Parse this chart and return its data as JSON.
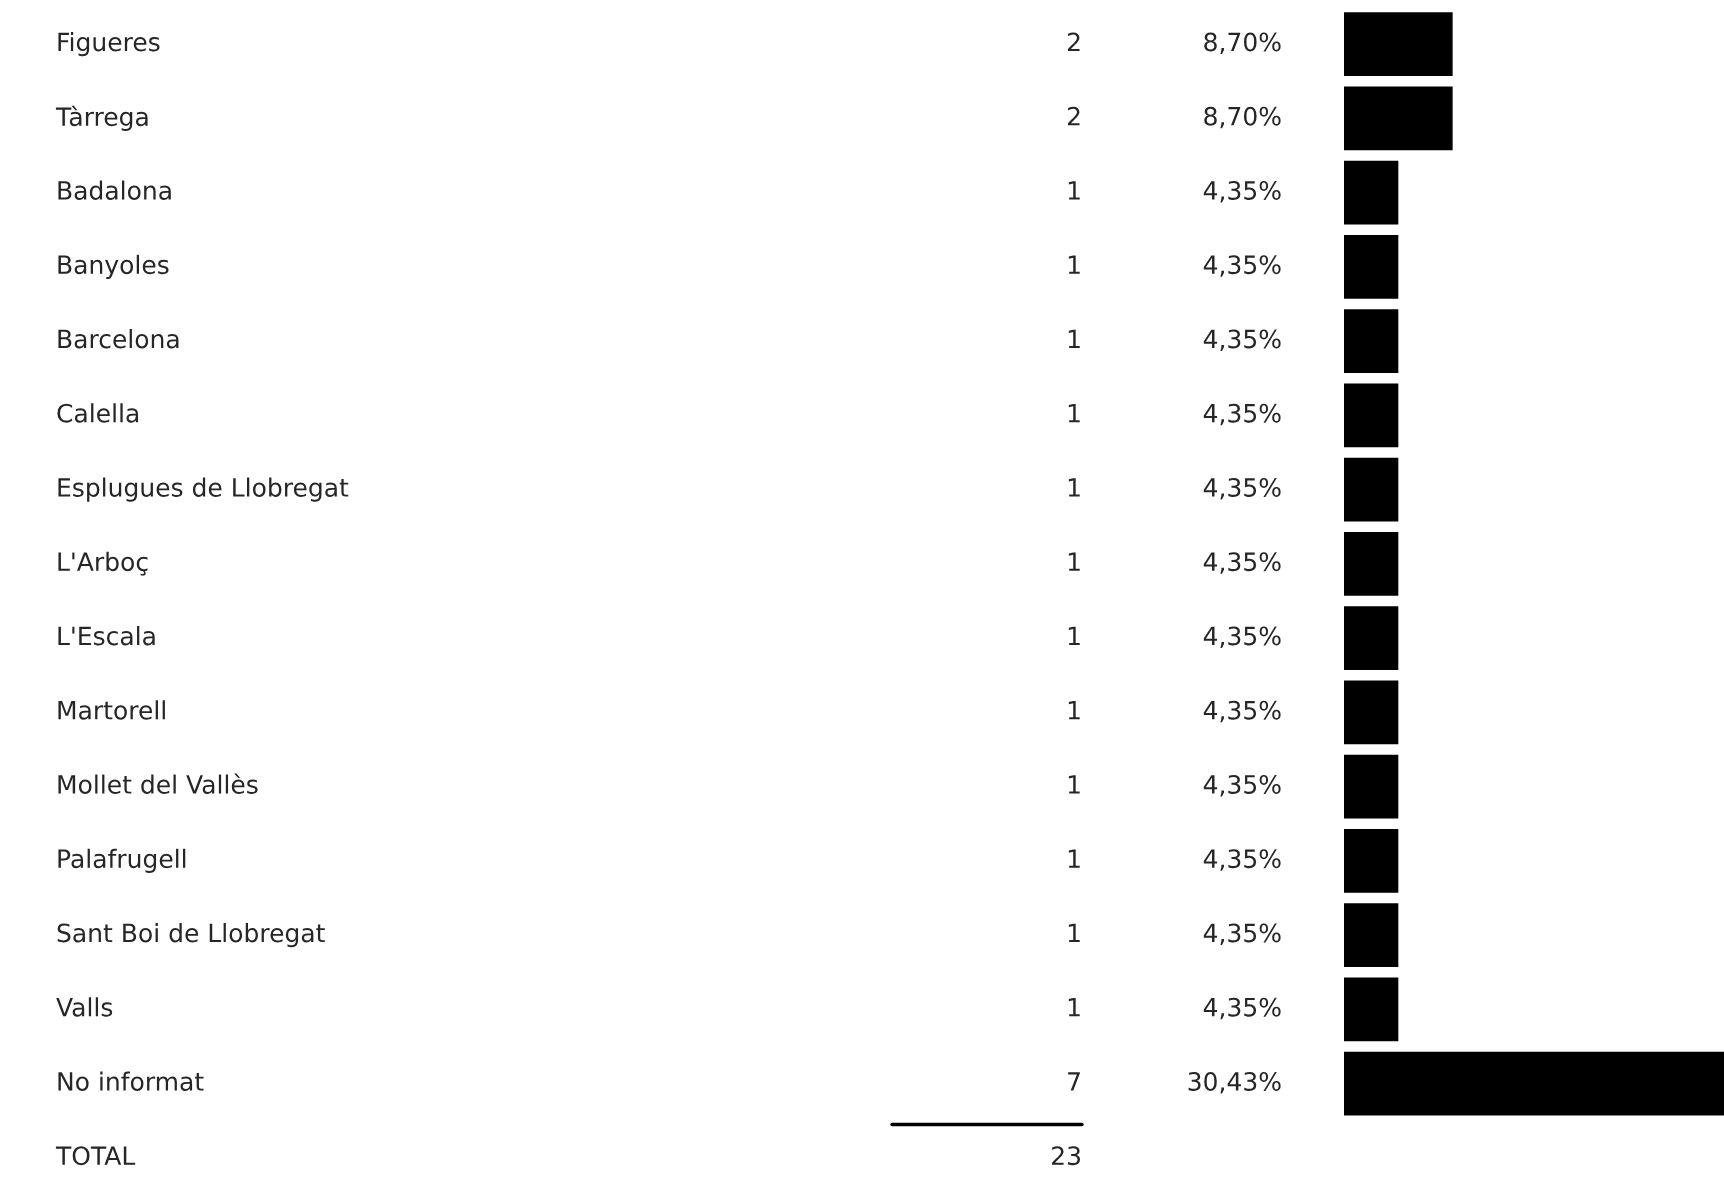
{
  "chart_data": {
    "type": "bar",
    "orientation": "horizontal",
    "categories": [
      "Figueres",
      "Tàrrega",
      "Badalona",
      "Banyoles",
      "Barcelona",
      "Calella",
      "Esplugues de Llobregat",
      "L'Arboç",
      "L'Escala",
      "Martorell",
      "Mollet del Vallès",
      "Palafrugell",
      "Sant Boi de Llobregat",
      "Valls",
      "No informat"
    ],
    "values": [
      8.7,
      8.7,
      4.35,
      4.35,
      4.35,
      4.35,
      4.35,
      4.35,
      4.35,
      4.35,
      4.35,
      4.35,
      4.35,
      4.35,
      30.43
    ],
    "color": "#000000",
    "value_labels": [
      "8,70%",
      "8,70%",
      "4,35%",
      "4,35%",
      "4,35%",
      "4,35%",
      "4,35%",
      "4,35%",
      "4,35%",
      "4,35%",
      "4,35%",
      "4,35%",
      "4,35%",
      "4,35%",
      "30,43%"
    ],
    "annotations": [
      "2",
      "2",
      "1",
      "1",
      "1",
      "1",
      "1",
      "1",
      "1",
      "1",
      "1",
      "1",
      "1",
      "1",
      "7",
      "TOTAL",
      "23"
    ],
    "legend": false
  }
}
